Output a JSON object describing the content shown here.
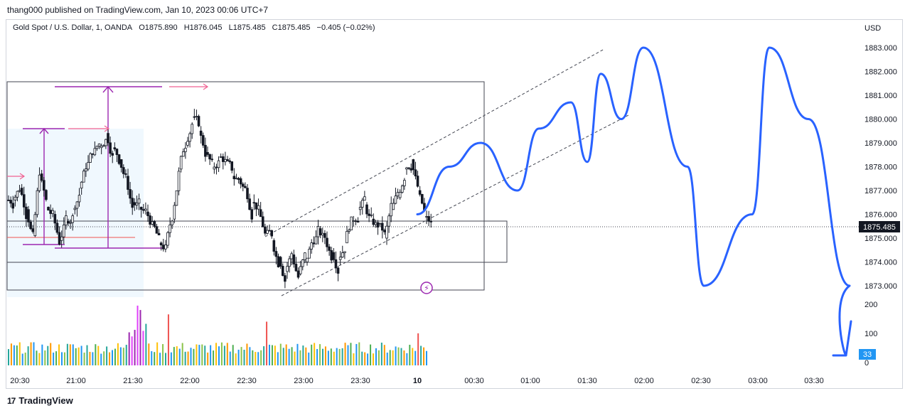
{
  "header": {
    "published": "thang000 published on TradingView.com, Jan 10, 2023 00:06 UTC+7"
  },
  "symbol": {
    "name": "Gold Spot / U.S. Dollar, 1, OANDA",
    "open": "O1875.890",
    "high": "H1876.045",
    "low": "L1875.485",
    "close": "C1875.485",
    "change": "−0.405 (−0.02%)"
  },
  "price_axis": {
    "currency": "USD",
    "current_price": "1875.485",
    "volume_current": "33"
  },
  "footer": {
    "brand": "TradingView",
    "logo": "17"
  },
  "colors": {
    "up": "#26a69a",
    "down": "#ef5350",
    "candle": "#131722",
    "projection": "#2962ff",
    "measure": "#9c27b0",
    "arrow": "#f06292",
    "zone": "#e3f2fd",
    "price_tag": "#131722",
    "volume_tag": "#2196f3"
  },
  "chart_data": {
    "type": "candlestick",
    "title": "Gold Spot / U.S. Dollar, 1, OANDA",
    "y_axis": {
      "label": "USD",
      "ticks": [
        1873,
        1874,
        1875,
        1876,
        1877,
        1878,
        1879,
        1880,
        1881,
        1882,
        1883
      ],
      "range": [
        1872.5,
        1884.3
      ]
    },
    "x_axis": {
      "ticks": [
        "20:30",
        "21:00",
        "21:30",
        "22:00",
        "22:30",
        "23:00",
        "23:30",
        "10",
        "00:30",
        "01:00",
        "01:30",
        "02:00",
        "02:30",
        "03:00",
        "03:30"
      ]
    },
    "volume_axis": {
      "ticks": [
        0,
        100,
        200
      ]
    },
    "close_series": [
      1876.6,
      1877.1,
      1876.2,
      1875.1,
      1877.7,
      1876.3,
      1876.0,
      1874.9,
      1875.7,
      1876.2,
      1877.1,
      1877.9,
      1878.5,
      1878.8,
      1879.4,
      1878.8,
      1878.3,
      1877.6,
      1876.5,
      1876.3,
      1876.1,
      1875.7,
      1874.8,
      1874.7,
      1875.8,
      1877.9,
      1878.9,
      1880.1,
      1879.5,
      1878.6,
      1877.9,
      1878.4,
      1878.3,
      1877.6,
      1877.5,
      1877.1,
      1876.5,
      1876.2,
      1875.2,
      1874.9,
      1874.2,
      1873.6,
      1874.3,
      1873.5,
      1874.0,
      1874.8,
      1875.4,
      1875.0,
      1874.4,
      1874.1,
      1874.8,
      1875.7,
      1876.2,
      1876.4,
      1875.8,
      1875.6,
      1875.0,
      1876.2,
      1876.7,
      1877.9,
      1878.3,
      1877.0,
      1875.9,
      1875.5
    ],
    "projection_path_prices": [
      1876.0,
      1878.0,
      1879.0,
      1877.0,
      1879.6,
      1880.7,
      1878.2,
      1881.9,
      1880.0,
      1883.0,
      1878.0,
      1873.0,
      1876.0,
      1883.0,
      1880.0,
      1873.0
    ],
    "horizontal_levels": {
      "current_price": 1875.485
    }
  }
}
